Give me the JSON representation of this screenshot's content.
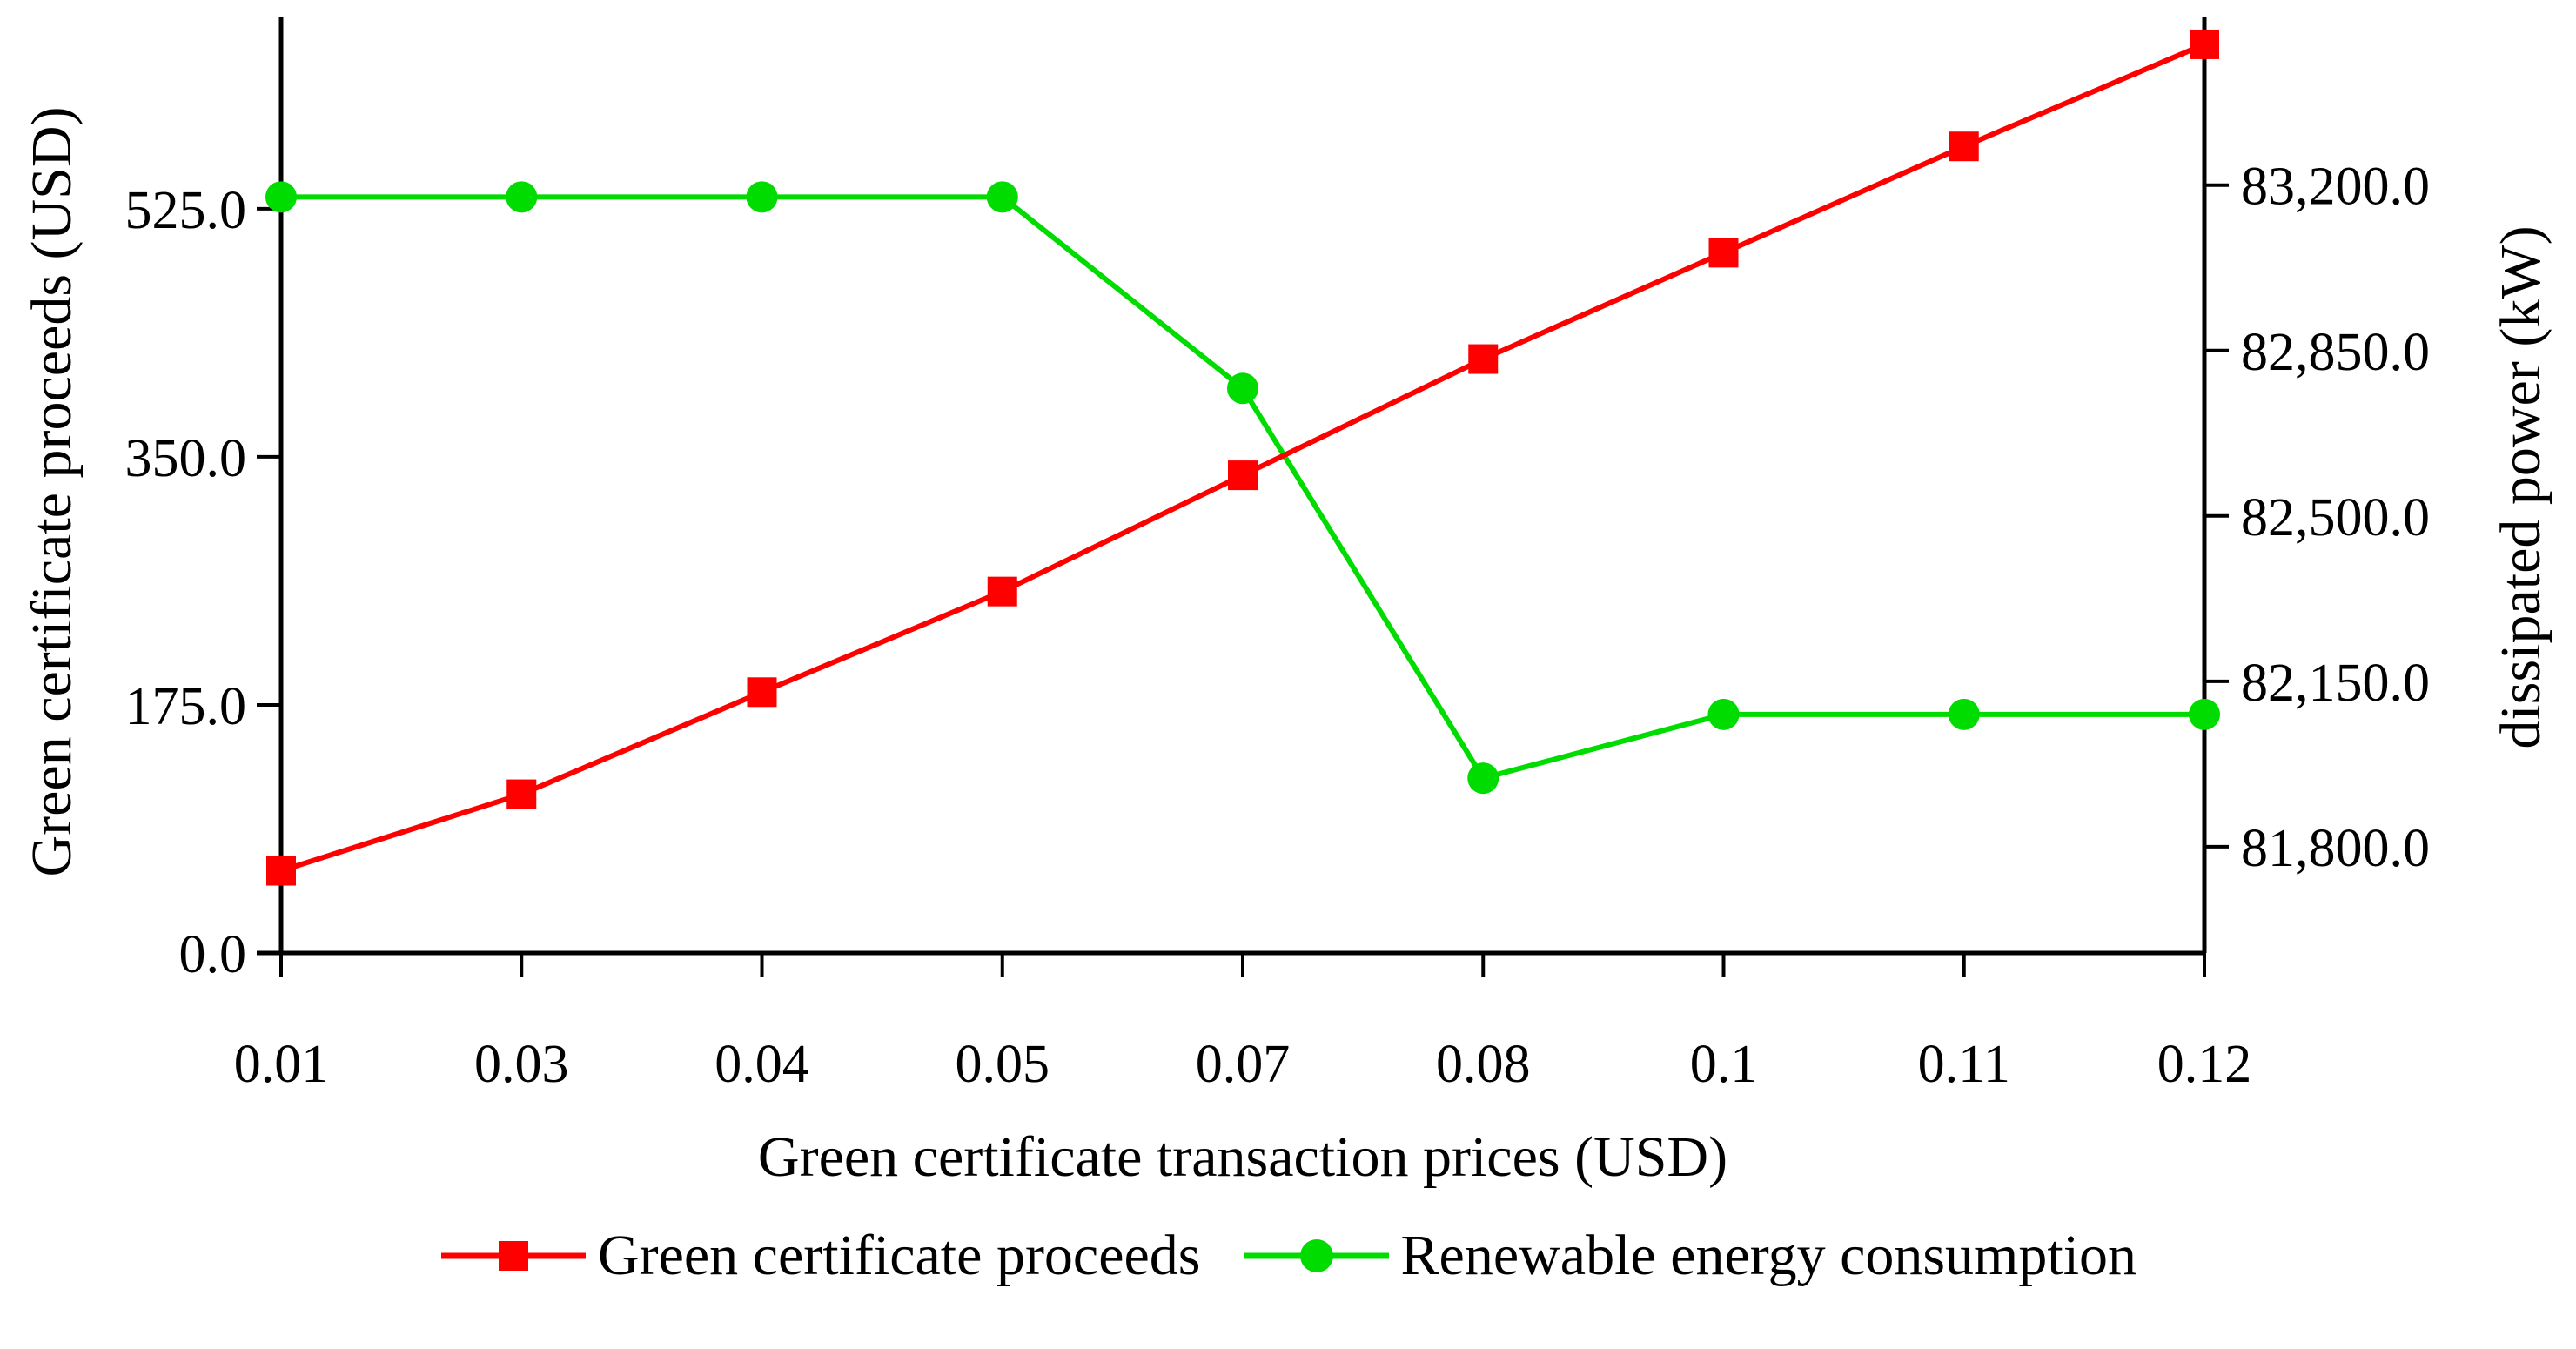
{
  "chart_data": {
    "type": "line",
    "title": "",
    "categories": [
      "0.01",
      "0.03",
      "0.04",
      "0.05",
      "0.07",
      "0.08",
      "0.1",
      "0.11",
      "0.12"
    ],
    "series": [
      {
        "name": "Green certificate proceeds",
        "axis": "left",
        "color": "#ff0000",
        "marker": "square",
        "values": [
          58,
          112,
          184,
          255,
          337,
          419,
          494,
          569,
          641
        ]
      },
      {
        "name": "Renewable energy consumption",
        "axis": "right",
        "color": "#00dc00",
        "marker": "circle",
        "values": [
          83175,
          83175,
          83175,
          83175,
          82770,
          81945,
          82080,
          82080,
          82080
        ]
      }
    ],
    "x_axis": {
      "title": "Green certificate transaction prices (USD)"
    },
    "left_axis": {
      "title": "Green certificate proceeds (USD)",
      "range": [
        0,
        660
      ],
      "ticks": [
        0,
        175,
        350,
        525
      ],
      "tick_labels": [
        "0.0",
        "175.0",
        "350.0",
        "525.0"
      ]
    },
    "right_axis": {
      "title": "dissipated power (kW)",
      "range": [
        81575,
        83555
      ],
      "ticks": [
        81800,
        82150,
        82500,
        82850,
        83200
      ],
      "tick_labels": [
        "81,800.0",
        "82,150.0",
        "82,500.0",
        "82,850.0",
        "83,200.0"
      ]
    },
    "legend_position": "bottom",
    "grid": false
  }
}
